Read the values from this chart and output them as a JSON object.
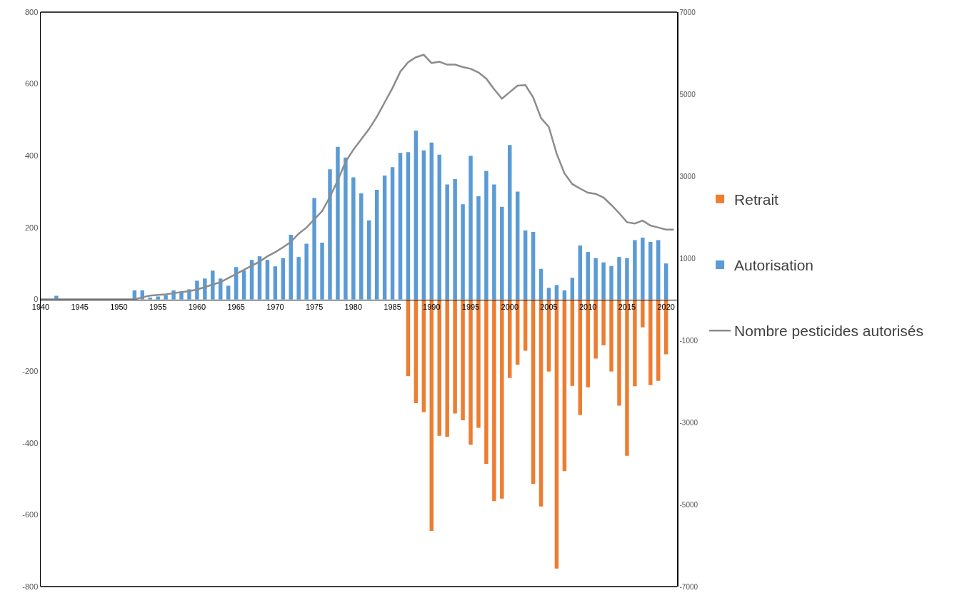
{
  "chart_data": {
    "type": "bar",
    "xlim": [
      1940,
      2021.4
    ],
    "xticks": [
      1940,
      1945,
      1950,
      1955,
      1960,
      1965,
      1970,
      1975,
      1980,
      1985,
      1990,
      1995,
      2000,
      2005,
      2010,
      2015,
      2020
    ],
    "ylim": [
      -800,
      800
    ],
    "yticks": [
      -800,
      -600,
      -400,
      -200,
      0,
      200,
      400,
      600,
      800
    ],
    "y2lim": [
      -7000,
      7000
    ],
    "y2ticks": [
      -7000,
      -5000,
      -3000,
      -1000,
      1000,
      3000,
      5000,
      7000
    ],
    "grid": false,
    "legend": "right",
    "series": [
      {
        "name": "Retrait",
        "color": "#ed7d31",
        "x": [
          1987,
          1988,
          1989,
          1990,
          1991,
          1992,
          1993,
          1994,
          1995,
          1996,
          1997,
          1998,
          1999,
          2000,
          2001,
          2002,
          2003,
          2004,
          2005,
          2006,
          2007,
          2008,
          2009,
          2010,
          2011,
          2012,
          2013,
          2014,
          2015,
          2016,
          2017,
          2018,
          2019,
          2020
        ],
        "values": [
          -214,
          -289,
          -314,
          -645,
          -380,
          -383,
          -318,
          -337,
          -405,
          -358,
          -458,
          -562,
          -555,
          -219,
          -182,
          -143,
          -514,
          -577,
          -201,
          -750,
          -478,
          -241,
          -322,
          -245,
          -165,
          -128,
          -201,
          -296,
          -436,
          -242,
          -78,
          -239,
          -227,
          -153
        ]
      },
      {
        "name": "Autorisation",
        "color": "#5b9bd5",
        "x": [
          1942,
          1952,
          1953,
          1954,
          1955,
          1956,
          1957,
          1958,
          1959,
          1960,
          1961,
          1962,
          1963,
          1964,
          1965,
          1966,
          1967,
          1968,
          1969,
          1970,
          1971,
          1972,
          1973,
          1974,
          1975,
          1976,
          1977,
          1978,
          1979,
          1980,
          1981,
          1982,
          1983,
          1984,
          1985,
          1986,
          1987,
          1988,
          1989,
          1990,
          1991,
          1992,
          1993,
          1994,
          1995,
          1996,
          1997,
          1998,
          1999,
          2000,
          2001,
          2002,
          2003,
          2004,
          2005,
          2006,
          2007,
          2008,
          2009,
          2010,
          2011,
          2012,
          2013,
          2014,
          2015,
          2016,
          2017,
          2018,
          2019,
          2020
        ],
        "values": [
          10,
          25,
          25,
          5,
          8,
          12,
          25,
          20,
          28,
          52,
          58,
          80,
          58,
          38,
          90,
          80,
          110,
          120,
          110,
          92,
          115,
          180,
          118,
          155,
          282,
          158,
          362,
          425,
          395,
          340,
          295,
          220,
          305,
          345,
          368,
          408,
          410,
          470,
          415,
          437,
          403,
          320,
          335,
          265,
          400,
          287,
          358,
          320,
          258,
          430,
          300,
          192,
          188,
          85,
          32,
          40,
          25,
          60,
          150,
          132,
          115,
          103,
          93,
          118,
          115,
          165,
          172,
          160,
          165,
          100
        ]
      },
      {
        "name": "Nombre pesticides autorisés",
        "type": "line",
        "axis": "y2",
        "color": "#8c8c8c",
        "marker": "none",
        "x": [
          1940,
          1945,
          1950,
          1952,
          1953,
          1954,
          1955,
          1956,
          1957,
          1958,
          1959,
          1960,
          1961,
          1962,
          1963,
          1964,
          1965,
          1966,
          1967,
          1968,
          1969,
          1970,
          1971,
          1972,
          1973,
          1974,
          1975,
          1976,
          1977,
          1978,
          1979,
          1980,
          1981,
          1982,
          1983,
          1984,
          1985,
          1986,
          1987,
          1988,
          1989,
          1990,
          1991,
          1992,
          1993,
          1994,
          1995,
          1996,
          1997,
          1998,
          1999,
          2000,
          2001,
          2002,
          2003,
          2004,
          2005,
          2006,
          2007,
          2008,
          2009,
          2010,
          2011,
          2012,
          2013,
          2014,
          2015,
          2016,
          2017,
          2018,
          2019,
          2020,
          2021
        ],
        "values": [
          0,
          0,
          0,
          0,
          50,
          90,
          110,
          120,
          150,
          180,
          200,
          240,
          300,
          360,
          420,
          520,
          620,
          720,
          820,
          920,
          1050,
          1150,
          1270,
          1400,
          1600,
          1750,
          1950,
          2150,
          2500,
          2900,
          3350,
          3650,
          3900,
          4150,
          4450,
          4800,
          5150,
          5550,
          5780,
          5900,
          5960,
          5760,
          5790,
          5720,
          5720,
          5660,
          5620,
          5530,
          5380,
          5120,
          4890,
          5050,
          5210,
          5220,
          4920,
          4420,
          4200,
          3550,
          3070,
          2810,
          2700,
          2600,
          2570,
          2480,
          2300,
          2100,
          1880,
          1850,
          1920,
          1800,
          1750,
          1700,
          1700
        ]
      }
    ]
  }
}
